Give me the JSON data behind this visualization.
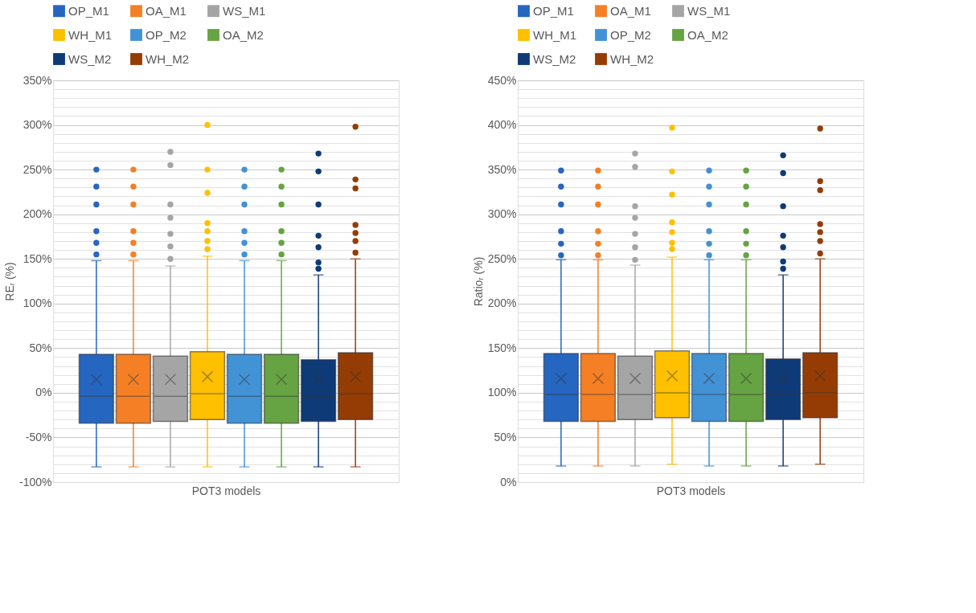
{
  "chart_data": [
    {
      "type": "box",
      "categories": [
        null
      ],
      "xlabel": "POT3 models",
      "ylabel": "REᵣ (%)",
      "ylim": [
        -100,
        350
      ],
      "yticks": [
        {
          "value": -100,
          "label": "-100%"
        },
        {
          "value": -90,
          "label": null
        },
        {
          "value": -80,
          "label": null
        },
        {
          "value": -70,
          "label": null
        },
        {
          "value": -60,
          "label": null
        },
        {
          "value": -50,
          "label": "-50%"
        },
        {
          "value": -40,
          "label": null
        },
        {
          "value": -30,
          "label": null
        },
        {
          "value": -20,
          "label": null
        },
        {
          "value": -10,
          "label": null
        },
        {
          "value": 0,
          "label": "0%"
        },
        {
          "value": 10,
          "label": null
        },
        {
          "value": 20,
          "label": null
        },
        {
          "value": 30,
          "label": null
        },
        {
          "value": 40,
          "label": null
        },
        {
          "value": 50,
          "label": "50%"
        },
        {
          "value": 60,
          "label": null
        },
        {
          "value": 70,
          "label": null
        },
        {
          "value": 80,
          "label": null
        },
        {
          "value": 90,
          "label": null
        },
        {
          "value": 100,
          "label": "100%"
        },
        {
          "value": 110,
          "label": null
        },
        {
          "value": 120,
          "label": null
        },
        {
          "value": 130,
          "label": null
        },
        {
          "value": 140,
          "label": null
        },
        {
          "value": 150,
          "label": "150%"
        },
        {
          "value": 160,
          "label": null
        },
        {
          "value": 170,
          "label": null
        },
        {
          "value": 180,
          "label": null
        },
        {
          "value": 190,
          "label": null
        },
        {
          "value": 200,
          "label": "200%"
        },
        {
          "value": 210,
          "label": null
        },
        {
          "value": 220,
          "label": null
        },
        {
          "value": 230,
          "label": null
        },
        {
          "value": 240,
          "label": null
        },
        {
          "value": 250,
          "label": "250%"
        },
        {
          "value": 260,
          "label": null
        },
        {
          "value": 270,
          "label": null
        },
        {
          "value": 280,
          "label": null
        },
        {
          "value": 290,
          "label": null
        },
        {
          "value": 300,
          "label": "300%"
        },
        {
          "value": 310,
          "label": null
        },
        {
          "value": 320,
          "label": null
        },
        {
          "value": 330,
          "label": null
        },
        {
          "value": 340,
          "label": null
        },
        {
          "value": 350,
          "label": "350%"
        }
      ],
      "grid": true,
      "legend": "top",
      "series": [
        {
          "name": "OP_M1",
          "color": "#2566c0",
          "boxes": [
            {
              "low": -83,
              "q1": -34,
              "median": -4,
              "q3": 43,
              "high": 148,
              "mean": 15,
              "outliers": [
                155,
                168,
                181,
                211,
                231,
                250
              ]
            }
          ]
        },
        {
          "name": "OA_M1",
          "color": "#f47f24",
          "boxes": [
            {
              "low": -83,
              "q1": -34,
              "median": -4,
              "q3": 43,
              "high": 148,
              "mean": 15,
              "outliers": [
                155,
                168,
                181,
                211,
                231,
                250
              ]
            }
          ]
        },
        {
          "name": "WS_M1",
          "color": "#a5a5a5",
          "boxes": [
            {
              "low": -83,
              "q1": -32,
              "median": -4,
              "q3": 41,
              "high": 142,
              "mean": 15,
              "outliers": [
                150,
                164,
                178,
                196,
                211,
                255,
                270
              ]
            }
          ]
        },
        {
          "name": "WH_M1",
          "color": "#ffc000",
          "boxes": [
            {
              "low": -83,
              "q1": -30,
              "median": -1,
              "q3": 46,
              "high": 153,
              "mean": 18,
              "outliers": [
                161,
                170,
                181,
                190,
                224,
                250,
                300
              ]
            }
          ]
        },
        {
          "name": "OP_M2",
          "color": "#4292d6",
          "boxes": [
            {
              "low": -83,
              "q1": -34,
              "median": -4,
              "q3": 43,
              "high": 148,
              "mean": 15,
              "outliers": [
                155,
                168,
                181,
                211,
                231,
                250
              ]
            }
          ]
        },
        {
          "name": "OA_M2",
          "color": "#66a343",
          "boxes": [
            {
              "low": -83,
              "q1": -34,
              "median": -4,
              "q3": 43,
              "high": 148,
              "mean": 15,
              "outliers": [
                155,
                168,
                181,
                211,
                231,
                250
              ]
            }
          ]
        },
        {
          "name": "WS_M2",
          "color": "#0e3a78",
          "boxes": [
            {
              "low": -83,
              "q1": -32,
              "median": -4,
              "q3": 37,
              "high": 132,
              "mean": 15,
              "outliers": [
                139,
                146,
                163,
                176,
                211,
                248,
                268
              ]
            }
          ]
        },
        {
          "name": "WH_M2",
          "color": "#953c05",
          "boxes": [
            {
              "low": -83,
              "q1": -30,
              "median": -1,
              "q3": 45,
              "high": 150,
              "mean": 18,
              "outliers": [
                157,
                170,
                179,
                188,
                229,
                239,
                298
              ]
            }
          ]
        }
      ]
    },
    {
      "type": "box",
      "categories": [
        null
      ],
      "xlabel": "POT3 models",
      "ylabel": "Ratioᵣ (%)",
      "ylim": [
        0,
        450
      ],
      "yticks": [
        {
          "value": 0,
          "label": "0%"
        },
        {
          "value": 10,
          "label": null
        },
        {
          "value": 20,
          "label": null
        },
        {
          "value": 30,
          "label": null
        },
        {
          "value": 40,
          "label": null
        },
        {
          "value": 50,
          "label": "50%"
        },
        {
          "value": 60,
          "label": null
        },
        {
          "value": 70,
          "label": null
        },
        {
          "value": 80,
          "label": null
        },
        {
          "value": 90,
          "label": null
        },
        {
          "value": 100,
          "label": "100%"
        },
        {
          "value": 110,
          "label": null
        },
        {
          "value": 120,
          "label": null
        },
        {
          "value": 130,
          "label": null
        },
        {
          "value": 140,
          "label": null
        },
        {
          "value": 150,
          "label": "150%"
        },
        {
          "value": 160,
          "label": null
        },
        {
          "value": 170,
          "label": null
        },
        {
          "value": 180,
          "label": null
        },
        {
          "value": 190,
          "label": null
        },
        {
          "value": 200,
          "label": "200%"
        },
        {
          "value": 210,
          "label": null
        },
        {
          "value": 220,
          "label": null
        },
        {
          "value": 230,
          "label": null
        },
        {
          "value": 240,
          "label": null
        },
        {
          "value": 250,
          "label": "250%"
        },
        {
          "value": 260,
          "label": null
        },
        {
          "value": 270,
          "label": null
        },
        {
          "value": 280,
          "label": null
        },
        {
          "value": 290,
          "label": null
        },
        {
          "value": 300,
          "label": "300%"
        },
        {
          "value": 310,
          "label": null
        },
        {
          "value": 320,
          "label": null
        },
        {
          "value": 330,
          "label": null
        },
        {
          "value": 340,
          "label": null
        },
        {
          "value": 350,
          "label": "350%"
        },
        {
          "value": 360,
          "label": null
        },
        {
          "value": 370,
          "label": null
        },
        {
          "value": 380,
          "label": null
        },
        {
          "value": 390,
          "label": null
        },
        {
          "value": 400,
          "label": "400%"
        },
        {
          "value": 410,
          "label": null
        },
        {
          "value": 420,
          "label": null
        },
        {
          "value": 430,
          "label": null
        },
        {
          "value": 440,
          "label": null
        },
        {
          "value": 450,
          "label": "450%"
        }
      ],
      "grid": true,
      "legend": "top",
      "series": [
        {
          "name": "OP_M1",
          "color": "#2566c0",
          "boxes": [
            {
              "low": 18,
              "q1": 68,
              "median": 98,
              "q3": 144,
              "high": 249,
              "mean": 116,
              "outliers": [
                254,
                267,
                281,
                311,
                331,
                349
              ]
            }
          ]
        },
        {
          "name": "OA_M1",
          "color": "#f47f24",
          "boxes": [
            {
              "low": 18,
              "q1": 68,
              "median": 98,
              "q3": 144,
              "high": 249,
              "mean": 116,
              "outliers": [
                254,
                267,
                281,
                311,
                331,
                349
              ]
            }
          ]
        },
        {
          "name": "WS_M1",
          "color": "#a5a5a5",
          "boxes": [
            {
              "low": 18,
              "q1": 70,
              "median": 98,
              "q3": 141,
              "high": 243,
              "mean": 116,
              "outliers": [
                249,
                263,
                278,
                296,
                309,
                353,
                368
              ]
            }
          ]
        },
        {
          "name": "WH_M1",
          "color": "#ffc000",
          "boxes": [
            {
              "low": 20,
              "q1": 72,
              "median": 100,
              "q3": 147,
              "high": 252,
              "mean": 119,
              "outliers": [
                261,
                268,
                280,
                291,
                322,
                348,
                397
              ]
            }
          ]
        },
        {
          "name": "OP_M2",
          "color": "#4292d6",
          "boxes": [
            {
              "low": 18,
              "q1": 68,
              "median": 98,
              "q3": 144,
              "high": 249,
              "mean": 116,
              "outliers": [
                254,
                267,
                281,
                311,
                331,
                349
              ]
            }
          ]
        },
        {
          "name": "OA_M2",
          "color": "#66a343",
          "boxes": [
            {
              "low": 18,
              "q1": 68,
              "median": 98,
              "q3": 144,
              "high": 249,
              "mean": 116,
              "outliers": [
                254,
                267,
                281,
                311,
                331,
                349
              ]
            }
          ]
        },
        {
          "name": "WS_M2",
          "color": "#0e3a78",
          "boxes": [
            {
              "low": 18,
              "q1": 70,
              "median": 98,
              "q3": 138,
              "high": 232,
              "mean": 116,
              "outliers": [
                239,
                247,
                263,
                276,
                309,
                346,
                366
              ]
            }
          ]
        },
        {
          "name": "WH_M2",
          "color": "#953c05",
          "boxes": [
            {
              "low": 20,
              "q1": 72,
              "median": 100,
              "q3": 145,
              "high": 250,
              "mean": 119,
              "outliers": [
                256,
                270,
                280,
                289,
                327,
                337,
                396
              ]
            }
          ]
        }
      ]
    }
  ]
}
